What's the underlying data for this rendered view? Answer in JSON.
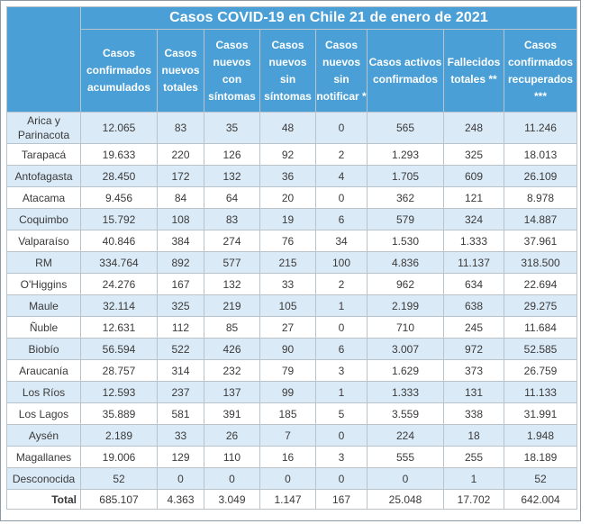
{
  "title": "Casos COVID-19 en Chile 21 de enero de 2021",
  "colors": {
    "header_bg": "#4a9fd6",
    "row_alt_bg": "#dbeaf7",
    "border": "#b9c3cb"
  },
  "headers": [
    "Casos confirmados acumulados",
    "Casos nuevos totales",
    "Casos nuevos con síntomas",
    "Casos nuevos sin síntomas",
    "Casos nuevos sin notificar *",
    "Casos activos confirmados",
    "Fallecidos totales **",
    "Casos confirmados recuperados ***"
  ],
  "rows": [
    {
      "region": "Arica y Parinacota",
      "values": [
        "12.065",
        "83",
        "35",
        "48",
        "0",
        "565",
        "248",
        "11.246"
      ]
    },
    {
      "region": "Tarapacá",
      "values": [
        "19.633",
        "220",
        "126",
        "92",
        "2",
        "1.293",
        "325",
        "18.013"
      ]
    },
    {
      "region": "Antofagasta",
      "values": [
        "28.450",
        "172",
        "132",
        "36",
        "4",
        "1.705",
        "609",
        "26.109"
      ]
    },
    {
      "region": "Atacama",
      "values": [
        "9.456",
        "84",
        "64",
        "20",
        "0",
        "362",
        "121",
        "8.978"
      ]
    },
    {
      "region": "Coquimbo",
      "values": [
        "15.792",
        "108",
        "83",
        "19",
        "6",
        "579",
        "324",
        "14.887"
      ]
    },
    {
      "region": "Valparaíso",
      "values": [
        "40.846",
        "384",
        "274",
        "76",
        "34",
        "1.530",
        "1.333",
        "37.961"
      ]
    },
    {
      "region": "RM",
      "values": [
        "334.764",
        "892",
        "577",
        "215",
        "100",
        "4.836",
        "11.137",
        "318.500"
      ]
    },
    {
      "region": "O'Higgins",
      "values": [
        "24.276",
        "167",
        "132",
        "33",
        "2",
        "962",
        "634",
        "22.694"
      ]
    },
    {
      "region": "Maule",
      "values": [
        "32.114",
        "325",
        "219",
        "105",
        "1",
        "2.199",
        "638",
        "29.275"
      ]
    },
    {
      "region": "Ñuble",
      "values": [
        "12.631",
        "112",
        "85",
        "27",
        "0",
        "710",
        "245",
        "11.684"
      ]
    },
    {
      "region": "Biobío",
      "values": [
        "56.594",
        "522",
        "426",
        "90",
        "6",
        "3.007",
        "972",
        "52.585"
      ]
    },
    {
      "region": "Araucanía",
      "values": [
        "28.757",
        "314",
        "232",
        "79",
        "3",
        "1.629",
        "373",
        "26.759"
      ]
    },
    {
      "region": "Los Ríos",
      "values": [
        "12.593",
        "237",
        "137",
        "99",
        "1",
        "1.333",
        "131",
        "11.133"
      ]
    },
    {
      "region": "Los Lagos",
      "values": [
        "35.889",
        "581",
        "391",
        "185",
        "5",
        "3.559",
        "338",
        "31.991"
      ]
    },
    {
      "region": "Aysén",
      "values": [
        "2.189",
        "33",
        "26",
        "7",
        "0",
        "224",
        "18",
        "1.948"
      ]
    },
    {
      "region": "Magallanes",
      "values": [
        "19.006",
        "129",
        "110",
        "16",
        "3",
        "555",
        "255",
        "18.189"
      ]
    },
    {
      "region": "Desconocida",
      "values": [
        "52",
        "0",
        "0",
        "0",
        "0",
        "0",
        "1",
        "52"
      ]
    }
  ],
  "total": {
    "label": "Total",
    "values": [
      "685.107",
      "4.363",
      "3.049",
      "1.147",
      "167",
      "25.048",
      "17.702",
      "642.004"
    ]
  }
}
